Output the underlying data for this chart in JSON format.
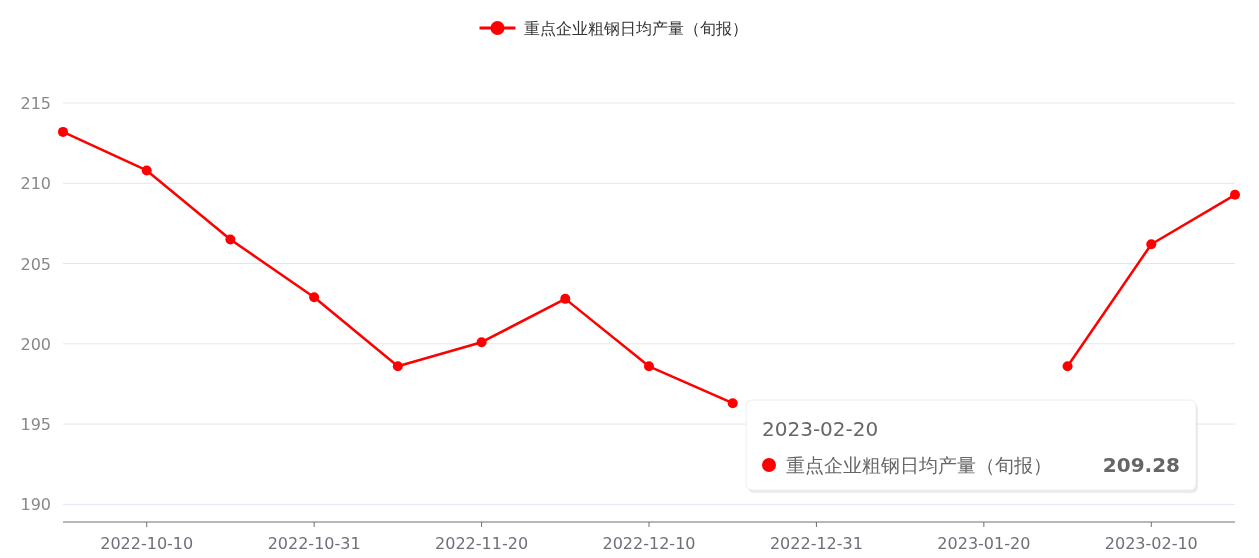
{
  "chart_data": {
    "type": "line",
    "categories": [
      null,
      "2022-10-10",
      null,
      "2022-10-31",
      null,
      "2022-11-20",
      null,
      "2022-12-10",
      null,
      "2022-12-31",
      null,
      "2023-01-20",
      null,
      "2023-02-10",
      null
    ],
    "series": [
      {
        "name": "重点企业粗钢日均产量（旬报）",
        "color": "#ff0000",
        "values": [
          213.2,
          210.8,
          206.5,
          202.9,
          198.6,
          200.1,
          202.8,
          198.6,
          196.3,
          null,
          null,
          null,
          198.6,
          206.2,
          209.28
        ]
      }
    ],
    "ylim": [
      188.9,
      215
    ],
    "yticks": [
      190,
      195,
      200,
      205,
      210,
      215
    ],
    "grid": "y",
    "legend": "top",
    "marker": "circle",
    "line_style": "solid",
    "annotations": [
      "2023-02-20",
      "重点企业粗钢日均产量（旬报）",
      "209.28"
    ]
  }
}
